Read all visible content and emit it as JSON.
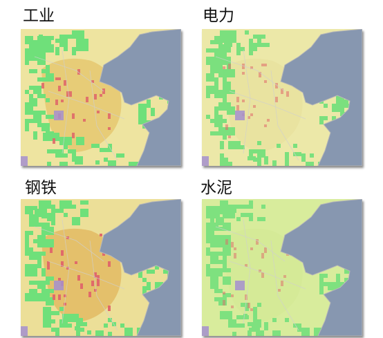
{
  "panels": [
    {
      "title": "工业",
      "base": "#eee4a0",
      "hot": "#e4c46a",
      "hotOpacity": 0.75,
      "red": 0.9,
      "green": 1.0,
      "sea": "#8797b0"
    },
    {
      "title": "电力",
      "base": "#ece8a8",
      "hot": "#e0d488",
      "hotOpacity": 0.25,
      "red": 0.55,
      "green": 0.9,
      "sea": "#8797b0"
    },
    {
      "title": "钢铁",
      "base": "#ecdf98",
      "hot": "#e2b860",
      "hotOpacity": 0.8,
      "red": 1.0,
      "green": 1.0,
      "sea": "#8797b0"
    },
    {
      "title": "水泥",
      "base": "#d8ec9c",
      "hot": "#cce48c",
      "hotOpacity": 0.3,
      "red": 0.5,
      "green": 0.85,
      "sea": "#8797b0"
    }
  ],
  "colors": {
    "green": "#6fe07a",
    "red": "#e06a6a",
    "purple": "#a48fcf",
    "coast": "#b8b8b8"
  }
}
